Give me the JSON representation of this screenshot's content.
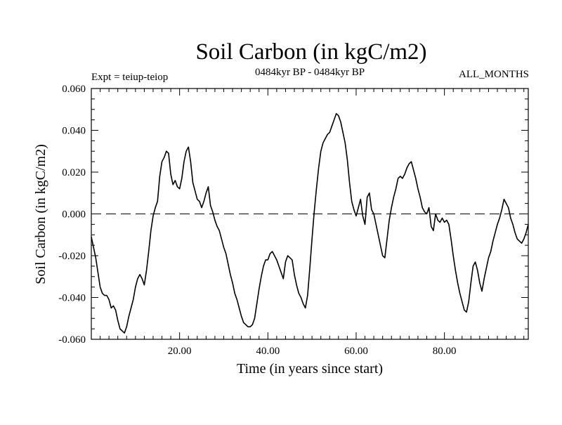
{
  "chart_data": {
    "type": "line",
    "title": "Soil Carbon (in kgC/m2)",
    "subtitle": "0484kyr BP - 0484kyr BP",
    "left_note": "Expt = teiup-teiop",
    "right_note": "ALL_MONTHS",
    "xlabel": "Time (in years since start)",
    "ylabel": "Soil Carbon (in kgC/m2)",
    "xlim": [
      0,
      99
    ],
    "ylim": [
      -0.06,
      0.06
    ],
    "x_ticks": [
      20,
      40,
      60,
      80
    ],
    "x_tick_labels": [
      "20.00",
      "40.00",
      "60.00",
      "80.00"
    ],
    "y_ticks": [
      -0.06,
      -0.04,
      -0.02,
      0.0,
      0.02,
      0.04,
      0.06
    ],
    "y_tick_labels": [
      "-0.060",
      "-0.040",
      "-0.020",
      "0.000",
      "0.020",
      "0.040",
      "0.060"
    ],
    "reference_line": {
      "y": 0.0,
      "style": "dashed"
    },
    "colors": {
      "line": "#000000",
      "axes": "#000000",
      "background": "#ffffff"
    },
    "series": [
      {
        "name": "Soil Carbon",
        "points": [
          [
            0,
            -0.011
          ],
          [
            0.5,
            -0.016
          ],
          [
            1,
            -0.021
          ],
          [
            1.5,
            -0.028
          ],
          [
            2,
            -0.035
          ],
          [
            2.5,
            -0.038
          ],
          [
            3,
            -0.039
          ],
          [
            3.5,
            -0.039
          ],
          [
            4,
            -0.041
          ],
          [
            4.5,
            -0.045
          ],
          [
            5,
            -0.044
          ],
          [
            5.5,
            -0.046
          ],
          [
            6,
            -0.051
          ],
          [
            6.5,
            -0.055
          ],
          [
            7,
            -0.056
          ],
          [
            7.5,
            -0.057
          ],
          [
            8,
            -0.054
          ],
          [
            8.5,
            -0.049
          ],
          [
            9,
            -0.045
          ],
          [
            9.5,
            -0.041
          ],
          [
            10,
            -0.035
          ],
          [
            10.5,
            -0.031
          ],
          [
            11,
            -0.029
          ],
          [
            11.5,
            -0.031
          ],
          [
            12,
            -0.034
          ],
          [
            12.5,
            -0.027
          ],
          [
            13,
            -0.018
          ],
          [
            13.5,
            -0.008
          ],
          [
            14,
            -0.001
          ],
          [
            14.5,
            0.003
          ],
          [
            15,
            0.006
          ],
          [
            15.5,
            0.018
          ],
          [
            16,
            0.025
          ],
          [
            16.5,
            0.027
          ],
          [
            17,
            0.03
          ],
          [
            17.5,
            0.029
          ],
          [
            18,
            0.019
          ],
          [
            18.5,
            0.014
          ],
          [
            19,
            0.016
          ],
          [
            19.5,
            0.013
          ],
          [
            20,
            0.012
          ],
          [
            20.5,
            0.017
          ],
          [
            21,
            0.025
          ],
          [
            21.5,
            0.03
          ],
          [
            22,
            0.032
          ],
          [
            22.5,
            0.025
          ],
          [
            23,
            0.015
          ],
          [
            23.5,
            0.011
          ],
          [
            24,
            0.007
          ],
          [
            24.5,
            0.006
          ],
          [
            25,
            0.003
          ],
          [
            25.5,
            0.006
          ],
          [
            26,
            0.01
          ],
          [
            26.5,
            0.013
          ],
          [
            27,
            0.004
          ],
          [
            27.5,
            0.001
          ],
          [
            28,
            -0.003
          ],
          [
            28.5,
            -0.006
          ],
          [
            29,
            -0.008
          ],
          [
            29.5,
            -0.012
          ],
          [
            30,
            -0.016
          ],
          [
            30.5,
            -0.019
          ],
          [
            31,
            -0.024
          ],
          [
            31.5,
            -0.029
          ],
          [
            32,
            -0.033
          ],
          [
            32.5,
            -0.038
          ],
          [
            33,
            -0.041
          ],
          [
            33.5,
            -0.045
          ],
          [
            34,
            -0.049
          ],
          [
            34.5,
            -0.052
          ],
          [
            35,
            -0.053
          ],
          [
            35.5,
            -0.054
          ],
          [
            36,
            -0.054
          ],
          [
            36.5,
            -0.053
          ],
          [
            37,
            -0.05
          ],
          [
            37.5,
            -0.043
          ],
          [
            38,
            -0.036
          ],
          [
            38.5,
            -0.03
          ],
          [
            39,
            -0.025
          ],
          [
            39.5,
            -0.022
          ],
          [
            40,
            -0.022
          ],
          [
            40.5,
            -0.019
          ],
          [
            41,
            -0.018
          ],
          [
            41.5,
            -0.02
          ],
          [
            42,
            -0.022
          ],
          [
            42.5,
            -0.025
          ],
          [
            43,
            -0.028
          ],
          [
            43.5,
            -0.031
          ],
          [
            44,
            -0.023
          ],
          [
            44.5,
            -0.02
          ],
          [
            45,
            -0.021
          ],
          [
            45.5,
            -0.022
          ],
          [
            46,
            -0.029
          ],
          [
            46.5,
            -0.034
          ],
          [
            47,
            -0.038
          ],
          [
            47.5,
            -0.04
          ],
          [
            48,
            -0.043
          ],
          [
            48.5,
            -0.045
          ],
          [
            49,
            -0.039
          ],
          [
            49.5,
            -0.026
          ],
          [
            50,
            -0.012
          ],
          [
            50.5,
            0.001
          ],
          [
            51,
            0.012
          ],
          [
            51.5,
            0.022
          ],
          [
            52,
            0.03
          ],
          [
            52.5,
            0.034
          ],
          [
            53,
            0.036
          ],
          [
            53.5,
            0.038
          ],
          [
            54,
            0.039
          ],
          [
            54.5,
            0.042
          ],
          [
            55,
            0.045
          ],
          [
            55.5,
            0.048
          ],
          [
            56,
            0.047
          ],
          [
            56.5,
            0.044
          ],
          [
            57,
            0.039
          ],
          [
            57.5,
            0.034
          ],
          [
            58,
            0.026
          ],
          [
            58.5,
            0.015
          ],
          [
            59,
            0.006
          ],
          [
            59.5,
            0.002
          ],
          [
            60,
            -0.001
          ],
          [
            60.5,
            0.003
          ],
          [
            61,
            0.007
          ],
          [
            61.5,
            -0.001
          ],
          [
            62,
            -0.005
          ],
          [
            62.5,
            0.008
          ],
          [
            63,
            0.01
          ],
          [
            63.5,
            0.002
          ],
          [
            64,
            0.0
          ],
          [
            64.5,
            -0.005
          ],
          [
            65,
            -0.01
          ],
          [
            65.5,
            -0.015
          ],
          [
            66,
            -0.02
          ],
          [
            66.5,
            -0.021
          ],
          [
            67,
            -0.012
          ],
          [
            67.5,
            -0.003
          ],
          [
            68,
            0.003
          ],
          [
            68.5,
            0.008
          ],
          [
            69,
            0.012
          ],
          [
            69.5,
            0.017
          ],
          [
            70,
            0.018
          ],
          [
            70.5,
            0.017
          ],
          [
            71,
            0.019
          ],
          [
            71.5,
            0.022
          ],
          [
            72,
            0.024
          ],
          [
            72.5,
            0.025
          ],
          [
            73,
            0.021
          ],
          [
            73.5,
            0.017
          ],
          [
            74,
            0.012
          ],
          [
            74.5,
            0.008
          ],
          [
            75,
            0.003
          ],
          [
            75.5,
            0.001
          ],
          [
            76,
            0.0
          ],
          [
            76.5,
            0.003
          ],
          [
            77,
            -0.006
          ],
          [
            77.5,
            -0.008
          ],
          [
            78,
            0.0
          ],
          [
            78.5,
            -0.003
          ],
          [
            79,
            -0.004
          ],
          [
            79.5,
            -0.002
          ],
          [
            80,
            -0.004
          ],
          [
            80.5,
            -0.003
          ],
          [
            81,
            -0.005
          ],
          [
            81.5,
            -0.012
          ],
          [
            82,
            -0.02
          ],
          [
            82.5,
            -0.027
          ],
          [
            83,
            -0.033
          ],
          [
            83.5,
            -0.038
          ],
          [
            84,
            -0.042
          ],
          [
            84.5,
            -0.046
          ],
          [
            85,
            -0.047
          ],
          [
            85.5,
            -0.042
          ],
          [
            86,
            -0.033
          ],
          [
            86.5,
            -0.025
          ],
          [
            87,
            -0.023
          ],
          [
            87.5,
            -0.027
          ],
          [
            88,
            -0.033
          ],
          [
            88.5,
            -0.037
          ],
          [
            89,
            -0.031
          ],
          [
            89.5,
            -0.026
          ],
          [
            90,
            -0.021
          ],
          [
            90.5,
            -0.018
          ],
          [
            91,
            -0.013
          ],
          [
            91.5,
            -0.009
          ],
          [
            92,
            -0.005
          ],
          [
            92.5,
            -0.002
          ],
          [
            93,
            0.002
          ],
          [
            93.5,
            0.007
          ],
          [
            94,
            0.005
          ],
          [
            94.5,
            0.003
          ],
          [
            95,
            -0.002
          ],
          [
            95.5,
            -0.005
          ],
          [
            96,
            -0.009
          ],
          [
            96.5,
            -0.012
          ],
          [
            97,
            -0.013
          ],
          [
            97.5,
            -0.014
          ],
          [
            98,
            -0.012
          ],
          [
            98.5,
            -0.009
          ],
          [
            99,
            -0.005
          ]
        ]
      }
    ]
  }
}
